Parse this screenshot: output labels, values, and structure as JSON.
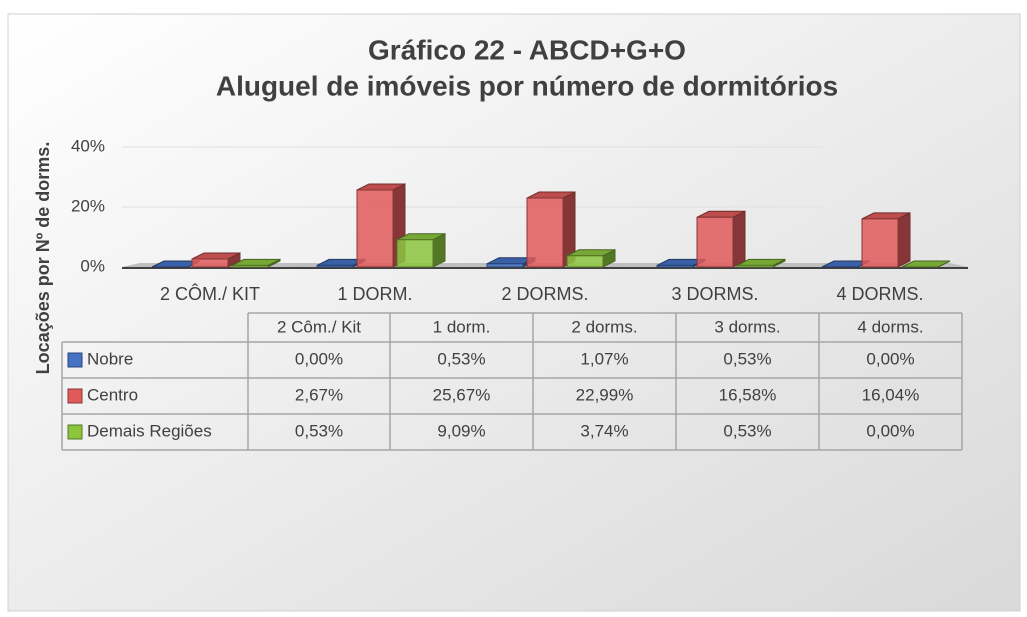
{
  "chart_data": {
    "type": "bar3d",
    "title": "Gráfico 22 - ABCD+G+O",
    "subtitle": "Aluguel de imóveis por número de dormitórios",
    "y_label": "Locações por Nº de dorms.",
    "categories": [
      "2 CÔM./ KIT",
      "1 DORM.",
      "2 DORMS.",
      "3 DORMS.",
      "4 DORMS."
    ],
    "table_headers": [
      "2 Côm./ Kit",
      "1 dorm.",
      "2 dorms.",
      "3 dorms.",
      "4 dorms."
    ],
    "series": [
      {
        "name": "Nobre",
        "color": "#4472c4",
        "values": [
          0,
          0.53,
          1.07,
          0.53,
          0
        ],
        "value_labels": [
          "0,00%",
          "0,53%",
          "1,07%",
          "0,53%",
          "0,00%"
        ]
      },
      {
        "name": "Centro",
        "color": "#e05a5a",
        "values": [
          2.67,
          25.67,
          22.99,
          16.58,
          16.04
        ],
        "value_labels": [
          "2,67%",
          "25,67%",
          "22,99%",
          "16,58%",
          "16,04%"
        ]
      },
      {
        "name": "Demais Regiões",
        "color": "#8cc63f",
        "values": [
          0.53,
          9.09,
          3.74,
          0.53,
          0
        ],
        "value_labels": [
          "0,53%",
          "9,09%",
          "3,74%",
          "0,53%",
          "0,00%"
        ]
      }
    ],
    "ylim": [
      0,
      40
    ],
    "yticks": [
      {
        "value": 0,
        "label": "0%"
      },
      {
        "value": 20,
        "label": "20%"
      },
      {
        "value": 40,
        "label": "40%"
      }
    ],
    "grid": true
  }
}
